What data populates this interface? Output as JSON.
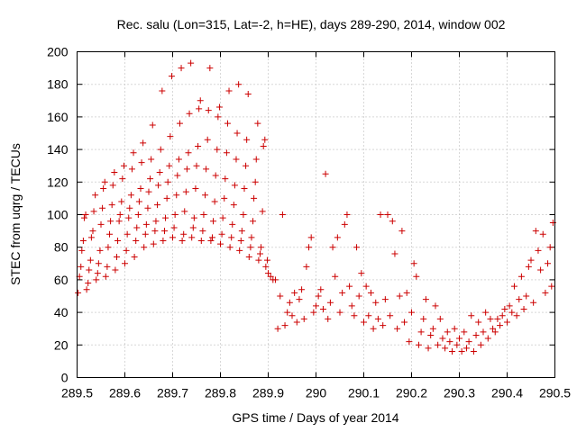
{
  "chart_data": {
    "type": "scatter",
    "title": "Rec. salu (Lon=315, Lat=-2, h=HE), days 289-290, 2014, window 002",
    "xlabel": "GPS time / Days of year 2014",
    "ylabel": "STEC from uqrg / TECUs",
    "xlim": [
      289.5,
      290.5
    ],
    "ylim": [
      0,
      200
    ],
    "xticks": [
      289.5,
      289.6,
      289.7,
      289.8,
      289.9,
      290.0,
      290.1,
      290.2,
      290.3,
      290.4,
      290.5
    ],
    "xtick_labels": [
      "289.5",
      "289.6",
      "289.7",
      "289.8",
      "289.9",
      "290",
      "290.1",
      "290.2",
      "290.3",
      "290.4",
      "290.5"
    ],
    "yticks": [
      0,
      20,
      40,
      60,
      80,
      100,
      120,
      140,
      160,
      180,
      200
    ],
    "ytick_labels": [
      "0",
      "20",
      "40",
      "60",
      "80",
      "100",
      "120",
      "140",
      "160",
      "180",
      "200"
    ],
    "grid": true,
    "marker": "+",
    "color": "#cc0000",
    "series": [
      {
        "points": [
          [
            289.502,
            52
          ],
          [
            289.505,
            62
          ],
          [
            289.508,
            68
          ],
          [
            289.51,
            78
          ],
          [
            289.513,
            84
          ],
          [
            289.515,
            98
          ],
          [
            289.518,
            100
          ],
          [
            289.52,
            54
          ],
          [
            289.523,
            58
          ],
          [
            289.525,
            66
          ],
          [
            289.528,
            72
          ],
          [
            289.53,
            86
          ],
          [
            289.533,
            90
          ],
          [
            289.535,
            102
          ],
          [
            289.538,
            112
          ],
          [
            289.54,
            60
          ],
          [
            289.543,
            64
          ],
          [
            289.545,
            70
          ],
          [
            289.548,
            78
          ],
          [
            289.55,
            94
          ],
          [
            289.553,
            104
          ],
          [
            289.555,
            116
          ],
          [
            289.558,
            120
          ],
          [
            289.56,
            62
          ],
          [
            289.563,
            68
          ],
          [
            289.565,
            80
          ],
          [
            289.568,
            88
          ],
          [
            289.57,
            96
          ],
          [
            289.573,
            106
          ],
          [
            289.575,
            118
          ],
          [
            289.578,
            126
          ],
          [
            289.58,
            66
          ],
          [
            289.583,
            74
          ],
          [
            289.585,
            84
          ],
          [
            289.588,
            96
          ],
          [
            289.59,
            100
          ],
          [
            289.593,
            108
          ],
          [
            289.595,
            122
          ],
          [
            289.598,
            130
          ],
          [
            289.6,
            70
          ],
          [
            289.603,
            78
          ],
          [
            289.605,
            88
          ],
          [
            289.608,
            98
          ],
          [
            289.61,
            104
          ],
          [
            289.613,
            112
          ],
          [
            289.615,
            128
          ],
          [
            289.618,
            138
          ],
          [
            289.62,
            74
          ],
          [
            289.623,
            84
          ],
          [
            289.625,
            92
          ],
          [
            289.628,
            100
          ],
          [
            289.63,
            108
          ],
          [
            289.633,
            116
          ],
          [
            289.635,
            132
          ],
          [
            289.638,
            144
          ],
          [
            289.64,
            80
          ],
          [
            289.643,
            88
          ],
          [
            289.645,
            94
          ],
          [
            289.648,
            104
          ],
          [
            289.65,
            114
          ],
          [
            289.653,
            122
          ],
          [
            289.655,
            134
          ],
          [
            289.658,
            155
          ],
          [
            289.66,
            82
          ],
          [
            289.663,
            90
          ],
          [
            289.665,
            96
          ],
          [
            289.668,
            106
          ],
          [
            289.67,
            118
          ],
          [
            289.673,
            126
          ],
          [
            289.675,
            140
          ],
          [
            289.678,
            176
          ],
          [
            289.68,
            84
          ],
          [
            289.683,
            90
          ],
          [
            289.685,
            98
          ],
          [
            289.688,
            110
          ],
          [
            289.69,
            120
          ],
          [
            289.693,
            130
          ],
          [
            289.695,
            148
          ],
          [
            289.698,
            185
          ],
          [
            289.7,
            86
          ],
          [
            289.703,
            92
          ],
          [
            289.705,
            100
          ],
          [
            289.708,
            112
          ],
          [
            289.71,
            124
          ],
          [
            289.713,
            134
          ],
          [
            289.715,
            156
          ],
          [
            289.718,
            190
          ],
          [
            289.72,
            84
          ],
          [
            289.723,
            88
          ],
          [
            289.725,
            102
          ],
          [
            289.728,
            114
          ],
          [
            289.73,
            128
          ],
          [
            289.733,
            138
          ],
          [
            289.735,
            162
          ],
          [
            289.738,
            193
          ],
          [
            289.74,
            86
          ],
          [
            289.743,
            92
          ],
          [
            289.745,
            98
          ],
          [
            289.748,
            116
          ],
          [
            289.75,
            130
          ],
          [
            289.753,
            142
          ],
          [
            289.755,
            165
          ],
          [
            289.758,
            170
          ],
          [
            289.76,
            84
          ],
          [
            289.763,
            90
          ],
          [
            289.765,
            100
          ],
          [
            289.768,
            112
          ],
          [
            289.77,
            128
          ],
          [
            289.773,
            146
          ],
          [
            289.775,
            164
          ],
          [
            289.778,
            190
          ],
          [
            289.78,
            84
          ],
          [
            289.783,
            86
          ],
          [
            289.785,
            96
          ],
          [
            289.788,
            108
          ],
          [
            289.79,
            124
          ],
          [
            289.793,
            140
          ],
          [
            289.795,
            160
          ],
          [
            289.798,
            166
          ],
          [
            289.8,
            82
          ],
          [
            289.803,
            88
          ],
          [
            289.805,
            98
          ],
          [
            289.808,
            110
          ],
          [
            289.81,
            122
          ],
          [
            289.813,
            138
          ],
          [
            289.815,
            156
          ],
          [
            289.818,
            176
          ],
          [
            289.82,
            80
          ],
          [
            289.823,
            86
          ],
          [
            289.825,
            94
          ],
          [
            289.828,
            106
          ],
          [
            289.83,
            118
          ],
          [
            289.833,
            134
          ],
          [
            289.835,
            150
          ],
          [
            289.838,
            180
          ],
          [
            289.84,
            78
          ],
          [
            289.843,
            84
          ],
          [
            289.845,
            90
          ],
          [
            289.848,
            100
          ],
          [
            289.85,
            116
          ],
          [
            289.853,
            130
          ],
          [
            289.855,
            146
          ],
          [
            289.858,
            174
          ],
          [
            289.86,
            74
          ],
          [
            289.863,
            80
          ],
          [
            289.865,
            86
          ],
          [
            289.868,
            96
          ],
          [
            289.87,
            110
          ],
          [
            289.873,
            120
          ],
          [
            289.875,
            134
          ],
          [
            289.878,
            156
          ],
          [
            289.88,
            72
          ],
          [
            289.883,
            76
          ],
          [
            289.885,
            80
          ],
          [
            289.888,
            102
          ],
          [
            289.89,
            142
          ],
          [
            289.893,
            146
          ],
          [
            289.895,
            68
          ],
          [
            289.898,
            72
          ],
          [
            289.9,
            64
          ],
          [
            289.905,
            62
          ],
          [
            289.91,
            60
          ],
          [
            289.915,
            60
          ],
          [
            289.92,
            30
          ],
          [
            289.925,
            50
          ],
          [
            289.93,
            100
          ],
          [
            289.935,
            32
          ],
          [
            289.94,
            40
          ],
          [
            289.945,
            46
          ],
          [
            289.95,
            38
          ],
          [
            289.955,
            52
          ],
          [
            289.96,
            34
          ],
          [
            289.965,
            48
          ],
          [
            289.97,
            54
          ],
          [
            289.975,
            36
          ],
          [
            289.98,
            68
          ],
          [
            289.985,
            80
          ],
          [
            289.99,
            86
          ],
          [
            289.995,
            40
          ],
          [
            290.0,
            44
          ],
          [
            290.005,
            50
          ],
          [
            290.01,
            54
          ],
          [
            290.015,
            42
          ],
          [
            290.02,
            125
          ],
          [
            290.025,
            36
          ],
          [
            290.03,
            46
          ],
          [
            290.035,
            80
          ],
          [
            290.04,
            62
          ],
          [
            290.045,
            86
          ],
          [
            290.05,
            40
          ],
          [
            290.055,
            52
          ],
          [
            290.06,
            94
          ],
          [
            290.065,
            100
          ],
          [
            290.07,
            56
          ],
          [
            290.075,
            44
          ],
          [
            290.08,
            38
          ],
          [
            290.085,
            80
          ],
          [
            290.09,
            50
          ],
          [
            290.095,
            64
          ],
          [
            290.1,
            34
          ],
          [
            290.105,
            56
          ],
          [
            290.11,
            38
          ],
          [
            290.115,
            52
          ],
          [
            290.12,
            30
          ],
          [
            290.125,
            46
          ],
          [
            290.13,
            36
          ],
          [
            290.135,
            100
          ],
          [
            290.14,
            32
          ],
          [
            290.145,
            48
          ],
          [
            290.15,
            100
          ],
          [
            290.155,
            38
          ],
          [
            290.16,
            96
          ],
          [
            290.165,
            76
          ],
          [
            290.17,
            30
          ],
          [
            290.175,
            50
          ],
          [
            290.18,
            90
          ],
          [
            290.185,
            34
          ],
          [
            290.19,
            52
          ],
          [
            290.195,
            22
          ],
          [
            290.2,
            40
          ],
          [
            290.205,
            70
          ],
          [
            290.21,
            62
          ],
          [
            290.215,
            20
          ],
          [
            290.22,
            28
          ],
          [
            290.225,
            36
          ],
          [
            290.23,
            48
          ],
          [
            290.235,
            18
          ],
          [
            290.24,
            26
          ],
          [
            290.245,
            30
          ],
          [
            290.25,
            44
          ],
          [
            290.255,
            20
          ],
          [
            290.26,
            36
          ],
          [
            290.265,
            24
          ],
          [
            290.27,
            18
          ],
          [
            290.275,
            28
          ],
          [
            290.28,
            22
          ],
          [
            290.285,
            16
          ],
          [
            290.29,
            30
          ],
          [
            290.295,
            20
          ],
          [
            290.3,
            24
          ],
          [
            290.305,
            16
          ],
          [
            290.31,
            28
          ],
          [
            290.315,
            18
          ],
          [
            290.32,
            22
          ],
          [
            290.325,
            38
          ],
          [
            290.33,
            16
          ],
          [
            290.335,
            26
          ],
          [
            290.34,
            34
          ],
          [
            290.345,
            20
          ],
          [
            290.35,
            28
          ],
          [
            290.355,
            40
          ],
          [
            290.36,
            24
          ],
          [
            290.365,
            36
          ],
          [
            290.37,
            30
          ],
          [
            290.375,
            28
          ],
          [
            290.38,
            36
          ],
          [
            290.385,
            32
          ],
          [
            290.39,
            38
          ],
          [
            290.395,
            42
          ],
          [
            290.4,
            34
          ],
          [
            290.405,
            44
          ],
          [
            290.41,
            40
          ],
          [
            290.415,
            56
          ],
          [
            290.42,
            38
          ],
          [
            290.425,
            48
          ],
          [
            290.43,
            62
          ],
          [
            290.435,
            42
          ],
          [
            290.44,
            50
          ],
          [
            290.445,
            68
          ],
          [
            290.45,
            72
          ],
          [
            290.455,
            46
          ],
          [
            290.46,
            90
          ],
          [
            290.465,
            78
          ],
          [
            290.47,
            66
          ],
          [
            290.475,
            88
          ],
          [
            290.48,
            52
          ],
          [
            290.485,
            70
          ],
          [
            290.49,
            80
          ],
          [
            290.493,
            56
          ],
          [
            290.496,
            95
          ]
        ]
      }
    ]
  }
}
